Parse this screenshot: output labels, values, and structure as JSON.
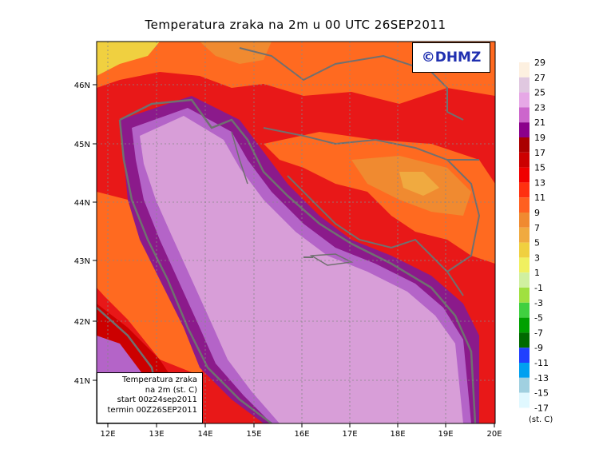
{
  "title": "Temperatura zraka na 2m u 00 UTC 26SEP2011",
  "copyright": "©DHMZ",
  "info_box": {
    "line1": "Temperatura zraka",
    "line2": "na 2m (st. C)",
    "line3": "start 00z24sep2011",
    "line4": "termin 00Z26SEP2011"
  },
  "axes": {
    "lat_labels": [
      "46N",
      "45N",
      "44N",
      "43N",
      "42N",
      "41N"
    ],
    "lon_labels": [
      "12E",
      "13E",
      "14E",
      "15E",
      "16E",
      "17E",
      "18E",
      "19E",
      "20E"
    ]
  },
  "legend": {
    "unit": "(st. C)",
    "levels": [
      "29",
      "27",
      "25",
      "23",
      "21",
      "19",
      "17",
      "15",
      "13",
      "11",
      "9",
      "7",
      "5",
      "3",
      "1",
      "-1",
      "-3",
      "-5",
      "-7",
      "-9",
      "-11",
      "-13",
      "-15",
      "-17"
    ],
    "colors": [
      "#fdf0e0",
      "#e0c8e0",
      "#e6a8e6",
      "#cc66cc",
      "#8b008b",
      "#aa0000",
      "#cc0000",
      "#f00000",
      "#ff3010",
      "#ff6020",
      "#f08a30",
      "#f0aa40",
      "#f0d040",
      "#f0f060",
      "#d0f0a0",
      "#a0e040",
      "#40d040",
      "#00a000",
      "#006a00",
      "#2040ff",
      "#00a0f0",
      "#a0d0e0",
      "#e0f8ff"
    ]
  },
  "colors": {
    "sea_near": "#d89ed8",
    "sea_edge": "#b464c8",
    "coast_purple": "#8b1a8b",
    "land_red": "#e81818",
    "land_orange": "#ff6a20",
    "land_yellow": "#f0d040",
    "border": "#707070"
  }
}
